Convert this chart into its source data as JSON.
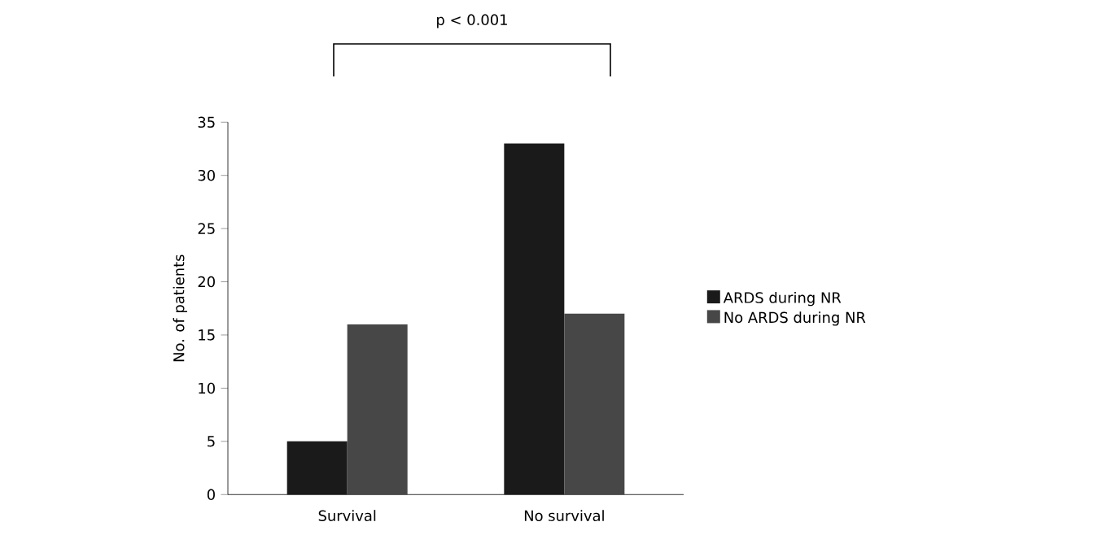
{
  "chart_data": {
    "type": "bar",
    "ylabel": "No. of patients",
    "categories": [
      "Survival",
      "No survival"
    ],
    "series": [
      {
        "name": "ARDS during NR",
        "color": "#1a1a1a",
        "values": [
          5,
          33
        ]
      },
      {
        "name": "No ARDS during NR",
        "color": "#474747",
        "values": [
          16,
          17
        ]
      }
    ],
    "ylim": [
      0,
      35
    ],
    "yticks": [
      0,
      5,
      10,
      15,
      20,
      25,
      30,
      35
    ],
    "legend": "right",
    "grid": false,
    "annotations": [
      "p < 0.001"
    ]
  }
}
